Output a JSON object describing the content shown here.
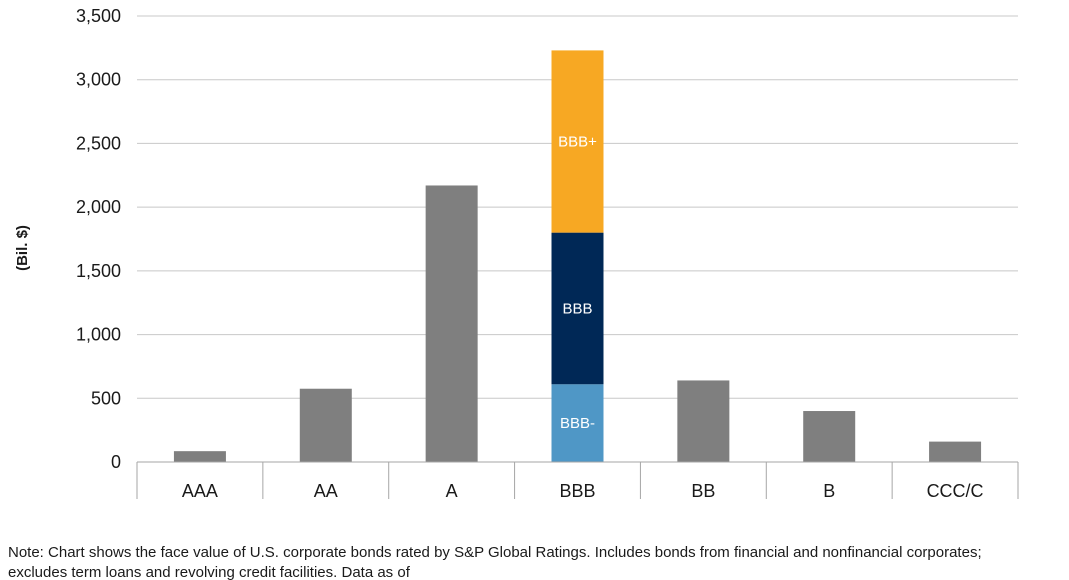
{
  "chart_data": {
    "type": "bar",
    "title": "",
    "xlabel": "",
    "ylabel": "(Bil. $)",
    "ylim": [
      0,
      3500
    ],
    "yticks": [
      0,
      500,
      1000,
      1500,
      2000,
      2500,
      3000,
      3500
    ],
    "ytick_labels": [
      "0",
      "500",
      "1,000",
      "1,500",
      "2,000",
      "2,500",
      "3,000",
      "3,500"
    ],
    "grid": true,
    "categories": [
      "AAA",
      "AA",
      "A",
      "BBB",
      "BB",
      "B",
      "CCC/C"
    ],
    "values": [
      85,
      575,
      2170,
      null,
      640,
      400,
      160
    ],
    "stacked": {
      "category": "BBB",
      "segments": [
        {
          "name": "BBB-",
          "value": 610,
          "color": "#4f97c6"
        },
        {
          "name": "BBB",
          "value": 1190,
          "color": "#002856"
        },
        {
          "name": "BBB+",
          "value": 1430,
          "color": "#f7a823"
        }
      ]
    },
    "bar_color": "#7f7f7f"
  },
  "note": {
    "text": "Note: Chart shows the face value of U.S. corporate bonds rated by S&P Global Ratings. Includes bonds from financial and nonfinancial corporates; excludes term loans and revolving credit facilities. Data as of"
  }
}
